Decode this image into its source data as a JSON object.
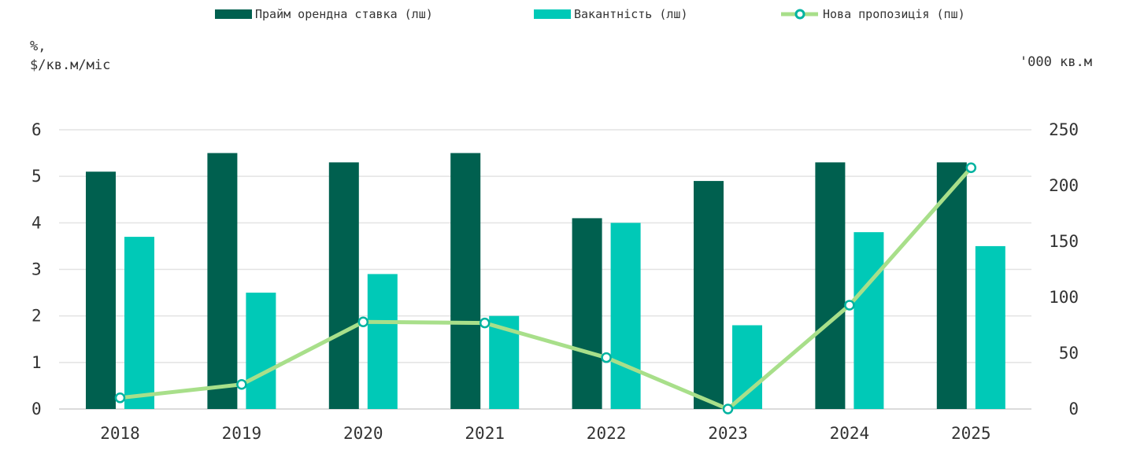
{
  "chart_data": {
    "type": "bar",
    "categories": [
      "2018",
      "2019",
      "2020",
      "2021",
      "2022",
      "2023",
      "2024",
      "2025"
    ],
    "series": [
      {
        "name": "Прайм орендна ставка (лш)",
        "type": "bar",
        "axis": "left",
        "values": [
          5.1,
          5.5,
          5.3,
          5.5,
          4.1,
          4.9,
          5.3,
          5.3
        ]
      },
      {
        "name": "Вакантність (лш)",
        "type": "bar",
        "axis": "left",
        "values": [
          3.7,
          2.5,
          2.9,
          2.0,
          4.0,
          1.8,
          3.8,
          3.5
        ]
      },
      {
        "name": "Нова пропозиція (пш)",
        "type": "line",
        "axis": "right",
        "values": [
          10,
          22,
          78,
          77,
          46,
          0,
          93,
          216
        ]
      }
    ],
    "ylabel_left_line1": "%,",
    "ylabel_left_line2": "$/кв.м/міс",
    "ylabel_right": "'000 кв.м",
    "ylim_left": [
      0,
      6
    ],
    "yticks_left": [
      "0",
      "1",
      "2",
      "3",
      "4",
      "5",
      "6"
    ],
    "ylim_right": [
      0,
      250
    ],
    "yticks_right": [
      "0",
      "50",
      "100",
      "150",
      "200",
      "250"
    ],
    "grid": true,
    "legend_position": "top",
    "colors": {
      "prime_rent": "#00604f",
      "vacancy": "#00c9b7",
      "new_supply": "#a8df8a",
      "marker_stroke": "#00b3a0"
    }
  }
}
